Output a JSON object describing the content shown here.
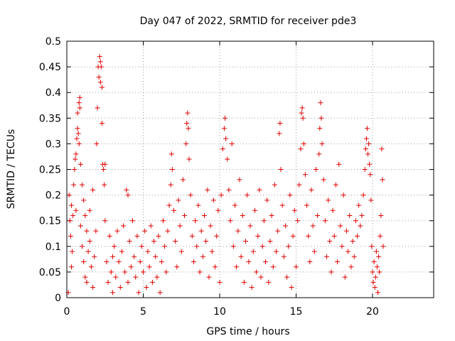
{
  "chart_data": {
    "type": "scatter",
    "title": "Day 047 of 2022, SRMTID for receiver pde3",
    "xlabel": "GPS time / hours",
    "ylabel": "SRMTID / TECUs",
    "xlim": [
      0,
      24
    ],
    "ylim": [
      0,
      0.5
    ],
    "xticks": [
      0,
      5,
      10,
      15,
      20
    ],
    "xtick_labels": [
      "0",
      "5",
      "10",
      "15",
      "20"
    ],
    "yticks": [
      0,
      0.05,
      0.1,
      0.15,
      0.2,
      0.25,
      0.3,
      0.35,
      0.4,
      0.45,
      0.5
    ],
    "ytick_labels": [
      "0",
      "0.05",
      "0.1",
      "0.15",
      "0.2",
      "0.25",
      "0.3",
      "0.35",
      "0.4",
      "0.45",
      "0.5"
    ],
    "grid": true,
    "marker": "+",
    "color": "#e00000",
    "series": [
      {
        "name": "SRMTID",
        "points": [
          [
            0.1,
            0.01
          ],
          [
            0.15,
            0.2
          ],
          [
            0.2,
            0.15
          ],
          [
            0.25,
            0.12
          ],
          [
            0.3,
            0.18
          ],
          [
            0.3,
            0.06
          ],
          [
            0.35,
            0.09
          ],
          [
            0.4,
            0.16
          ],
          [
            0.45,
            0.22
          ],
          [
            0.5,
            0.25
          ],
          [
            0.55,
            0.27
          ],
          [
            0.6,
            0.28
          ],
          [
            0.6,
            0.17
          ],
          [
            0.65,
            0.31
          ],
          [
            0.7,
            0.36
          ],
          [
            0.7,
            0.33
          ],
          [
            0.75,
            0.32
          ],
          [
            0.8,
            0.3
          ],
          [
            0.8,
            0.38
          ],
          [
            0.85,
            0.39
          ],
          [
            0.85,
            0.37
          ],
          [
            0.9,
            0.26
          ],
          [
            0.9,
            0.14
          ],
          [
            1.0,
            0.22
          ],
          [
            1.0,
            0.1
          ],
          [
            1.1,
            0.19
          ],
          [
            1.1,
            0.07
          ],
          [
            1.2,
            0.16
          ],
          [
            1.2,
            0.04
          ],
          [
            1.3,
            0.13
          ],
          [
            1.3,
            0.03
          ],
          [
            1.4,
            0.09
          ],
          [
            1.5,
            0.17
          ],
          [
            1.5,
            0.11
          ],
          [
            1.6,
            0.06
          ],
          [
            1.7,
            0.21
          ],
          [
            1.7,
            0.02
          ],
          [
            1.8,
            0.08
          ],
          [
            1.9,
            0.13
          ],
          [
            1.95,
            0.3
          ],
          [
            2.0,
            0.37
          ],
          [
            2.05,
            0.45
          ],
          [
            2.1,
            0.43
          ],
          [
            2.15,
            0.47
          ],
          [
            2.2,
            0.42
          ],
          [
            2.2,
            0.46
          ],
          [
            2.25,
            0.45
          ],
          [
            2.3,
            0.41
          ],
          [
            2.3,
            0.34
          ],
          [
            2.35,
            0.26
          ],
          [
            2.4,
            0.25
          ],
          [
            2.45,
            0.22
          ],
          [
            2.5,
            0.26
          ],
          [
            2.5,
            0.15
          ],
          [
            2.6,
            0.07
          ],
          [
            2.7,
            0.03
          ],
          [
            2.8,
            0.12
          ],
          [
            2.9,
            0.05
          ],
          [
            3.0,
            0.08
          ],
          [
            3.0,
            0.01
          ],
          [
            3.1,
            0.1
          ],
          [
            3.2,
            0.04
          ],
          [
            3.3,
            0.13
          ],
          [
            3.4,
            0.07
          ],
          [
            3.5,
            0.02
          ],
          [
            3.6,
            0.09
          ],
          [
            3.7,
            0.14
          ],
          [
            3.8,
            0.05
          ],
          [
            3.9,
            0.21
          ],
          [
            4.0,
            0.2
          ],
          [
            4.0,
            0.03
          ],
          [
            4.1,
            0.11
          ],
          [
            4.2,
            0.06
          ],
          [
            4.3,
            0.15
          ],
          [
            4.4,
            0.08
          ],
          [
            4.5,
            0.04
          ],
          [
            4.6,
            0.12
          ],
          [
            4.7,
            0.01
          ],
          [
            4.8,
            0.07
          ],
          [
            4.9,
            0.1
          ],
          [
            5.0,
            0.05
          ],
          [
            5.1,
            0.13
          ],
          [
            5.2,
            0.02
          ],
          [
            5.3,
            0.09
          ],
          [
            5.4,
            0.06
          ],
          [
            5.5,
            0.14
          ],
          [
            5.6,
            0.03
          ],
          [
            5.7,
            0.11
          ],
          [
            5.8,
            0.08
          ],
          [
            5.9,
            0.04
          ],
          [
            6.0,
            0.12
          ],
          [
            6.1,
            0.01
          ],
          [
            6.2,
            0.07
          ],
          [
            6.3,
            0.15
          ],
          [
            6.4,
            0.1
          ],
          [
            6.5,
            0.05
          ],
          [
            6.6,
            0.13
          ],
          [
            6.7,
            0.18
          ],
          [
            6.8,
            0.22
          ],
          [
            6.85,
            0.28
          ],
          [
            6.9,
            0.25
          ],
          [
            7.0,
            0.17
          ],
          [
            7.1,
            0.11
          ],
          [
            7.2,
            0.06
          ],
          [
            7.3,
            0.19
          ],
          [
            7.4,
            0.14
          ],
          [
            7.5,
            0.09
          ],
          [
            7.6,
            0.23
          ],
          [
            7.7,
            0.16
          ],
          [
            7.8,
            0.3
          ],
          [
            7.85,
            0.34
          ],
          [
            7.9,
            0.36
          ],
          [
            7.95,
            0.33
          ],
          [
            8.0,
            0.27
          ],
          [
            8.1,
            0.2
          ],
          [
            8.2,
            0.12
          ],
          [
            8.3,
            0.07
          ],
          [
            8.4,
            0.15
          ],
          [
            8.5,
            0.1
          ],
          [
            8.6,
            0.18
          ],
          [
            8.7,
            0.05
          ],
          [
            8.8,
            0.13
          ],
          [
            8.9,
            0.08
          ],
          [
            9.0,
            0.16
          ],
          [
            9.1,
            0.11
          ],
          [
            9.2,
            0.21
          ],
          [
            9.3,
            0.04
          ],
          [
            9.4,
            0.14
          ],
          [
            9.5,
            0.09
          ],
          [
            9.6,
            0.19
          ],
          [
            9.7,
            0.06
          ],
          [
            9.8,
            0.12
          ],
          [
            9.9,
            0.17
          ],
          [
            10.0,
            0.03
          ],
          [
            10.1,
            0.2
          ],
          [
            10.2,
            0.29
          ],
          [
            10.3,
            0.33
          ],
          [
            10.35,
            0.35
          ],
          [
            10.4,
            0.31
          ],
          [
            10.5,
            0.27
          ],
          [
            10.6,
            0.21
          ],
          [
            10.7,
            0.15
          ],
          [
            10.8,
            0.3
          ],
          [
            10.9,
            0.1
          ],
          [
            11.0,
            0.18
          ],
          [
            11.1,
            0.06
          ],
          [
            11.2,
            0.13
          ],
          [
            11.3,
            0.23
          ],
          [
            11.4,
            0.08
          ],
          [
            11.5,
            0.16
          ],
          [
            11.6,
            0.03
          ],
          [
            11.7,
            0.11
          ],
          [
            11.8,
            0.2
          ],
          [
            11.9,
            0.07
          ],
          [
            12.0,
            0.14
          ],
          [
            12.1,
            0.02
          ],
          [
            12.2,
            0.09
          ],
          [
            12.3,
            0.17
          ],
          [
            12.4,
            0.05
          ],
          [
            12.5,
            0.12
          ],
          [
            12.6,
            0.21
          ],
          [
            12.7,
            0.04
          ],
          [
            12.8,
            0.1
          ],
          [
            12.9,
            0.15
          ],
          [
            13.0,
            0.07
          ],
          [
            13.1,
            0.19
          ],
          [
            13.2,
            0.03
          ],
          [
            13.3,
            0.11
          ],
          [
            13.4,
            0.16
          ],
          [
            13.5,
            0.06
          ],
          [
            13.6,
            0.22
          ],
          [
            13.7,
            0.09
          ],
          [
            13.8,
            0.13
          ],
          [
            13.9,
            0.32
          ],
          [
            13.95,
            0.34
          ],
          [
            14.0,
            0.25
          ],
          [
            14.1,
            0.18
          ],
          [
            14.2,
            0.08
          ],
          [
            14.3,
            0.14
          ],
          [
            14.4,
            0.04
          ],
          [
            14.5,
            0.1
          ],
          [
            14.6,
            0.2
          ],
          [
            14.7,
            0.02
          ],
          [
            14.8,
            0.12
          ],
          [
            14.9,
            0.17
          ],
          [
            15.0,
            0.06
          ],
          [
            15.1,
            0.15
          ],
          [
            15.2,
            0.22
          ],
          [
            15.3,
            0.29
          ],
          [
            15.35,
            0.36
          ],
          [
            15.4,
            0.37
          ],
          [
            15.45,
            0.35
          ],
          [
            15.5,
            0.3
          ],
          [
            15.6,
            0.24
          ],
          [
            15.7,
            0.18
          ],
          [
            15.8,
            0.12
          ],
          [
            15.9,
            0.07
          ],
          [
            16.0,
            0.21
          ],
          [
            16.1,
            0.14
          ],
          [
            16.2,
            0.09
          ],
          [
            16.3,
            0.25
          ],
          [
            16.4,
            0.16
          ],
          [
            16.5,
            0.28
          ],
          [
            16.55,
            0.33
          ],
          [
            16.6,
            0.38
          ],
          [
            16.65,
            0.35
          ],
          [
            16.7,
            0.3
          ],
          [
            16.8,
            0.23
          ],
          [
            16.9,
            0.15
          ],
          [
            17.0,
            0.08
          ],
          [
            17.1,
            0.19
          ],
          [
            17.2,
            0.11
          ],
          [
            17.3,
            0.05
          ],
          [
            17.4,
            0.17
          ],
          [
            17.5,
            0.12
          ],
          [
            17.6,
            0.22
          ],
          [
            17.7,
            0.07
          ],
          [
            17.8,
            0.26
          ],
          [
            17.9,
            0.14
          ],
          [
            18.0,
            0.1
          ],
          [
            18.1,
            0.2
          ],
          [
            18.2,
            0.04
          ],
          [
            18.3,
            0.13
          ],
          [
            18.4,
            0.09
          ],
          [
            18.5,
            0.16
          ],
          [
            18.6,
            0.06
          ],
          [
            18.7,
            0.11
          ],
          [
            18.8,
            0.08
          ],
          [
            18.9,
            0.15
          ],
          [
            19.0,
            0.12
          ],
          [
            19.1,
            0.18
          ],
          [
            19.2,
            0.14
          ],
          [
            19.3,
            0.16
          ],
          [
            19.4,
            0.2
          ],
          [
            19.5,
            0.25
          ],
          [
            19.55,
            0.29
          ],
          [
            19.6,
            0.31
          ],
          [
            19.65,
            0.33
          ],
          [
            19.7,
            0.28
          ],
          [
            19.75,
            0.3
          ],
          [
            19.8,
            0.26
          ],
          [
            19.85,
            0.24
          ],
          [
            19.9,
            0.19
          ],
          [
            19.95,
            0.1
          ],
          [
            20.0,
            0.05
          ],
          [
            20.05,
            0.03
          ],
          [
            20.1,
            0.07
          ],
          [
            20.15,
            0.02
          ],
          [
            20.2,
            0.04
          ],
          [
            20.25,
            0.09
          ],
          [
            20.3,
            0.06
          ],
          [
            20.35,
            0.01
          ],
          [
            20.4,
            0.08
          ],
          [
            20.45,
            0.05
          ],
          [
            20.5,
            0.12
          ],
          [
            20.55,
            0.16
          ],
          [
            20.6,
            0.29
          ],
          [
            20.65,
            0.23
          ],
          [
            20.7,
            0.1
          ]
        ]
      }
    ]
  }
}
